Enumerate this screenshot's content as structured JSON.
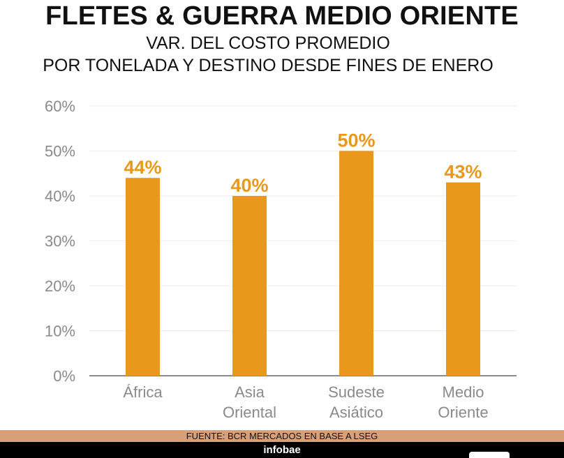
{
  "title": "FLETES & GUERRA MEDIO ORIENTE",
  "subtitle_line1": "VAR. DEL COSTO PROMEDIO",
  "subtitle_line2": "POR TONELADA Y DESTINO DESDE FINES DE ENERO",
  "source": "FUENTE: BCR MERCADOS EN BASE A LSEG",
  "brand": "infobae",
  "colors": {
    "bar": "#e8981a",
    "label": "#e8981a",
    "axis_text": "#8a8a8a",
    "grid": "#ececec"
  },
  "chart_data": {
    "type": "bar",
    "categories": [
      [
        "África"
      ],
      [
        "Asia",
        "Oriental"
      ],
      [
        "Sudeste",
        "Asiático"
      ],
      [
        "Medio",
        "Oriente"
      ]
    ],
    "values": [
      44,
      40,
      50,
      43
    ],
    "data_labels": [
      "44%",
      "40%",
      "50%",
      "43%"
    ],
    "ylim": [
      0,
      60
    ],
    "yticks": [
      "0%",
      "10%",
      "20%",
      "30%",
      "40%",
      "50%",
      "60%"
    ],
    "grid": true
  }
}
